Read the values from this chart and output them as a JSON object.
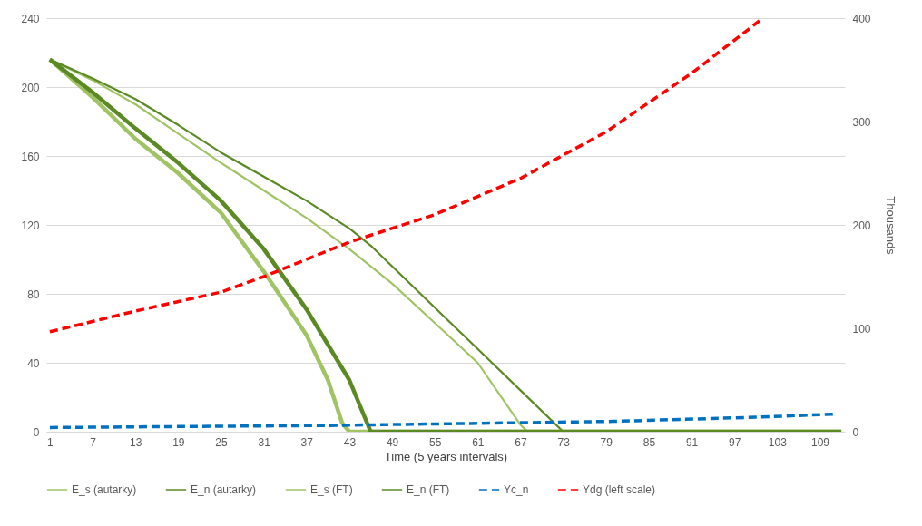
{
  "chart_data": {
    "type": "line",
    "xlabel": "Time (5 years intervals)",
    "y2label": "Thousands",
    "xlim": [
      0.5,
      112.5
    ],
    "xticks": [
      1,
      7,
      13,
      19,
      25,
      31,
      37,
      43,
      49,
      55,
      61,
      67,
      73,
      79,
      85,
      91,
      97,
      103,
      109
    ],
    "ylim": [
      0,
      240
    ],
    "yticks": [
      0,
      40,
      80,
      120,
      160,
      200,
      240
    ],
    "y2lim": [
      0,
      400
    ],
    "y2ticks": [
      0,
      100,
      200,
      300,
      400
    ],
    "grid": "y",
    "legend": "bottom",
    "marker": "none",
    "series": [
      {
        "name": "E_s (autarky)",
        "color": "#a0c464",
        "line_style": "solid",
        "x": [
          1,
          7,
          13,
          19,
          25,
          31,
          37,
          43,
          49,
          55,
          61,
          67,
          68,
          112
        ],
        "values": [
          216,
          204,
          190,
          173,
          156,
          140,
          124,
          106,
          86,
          63,
          40,
          4,
          0,
          0
        ]
      },
      {
        "name": "E_n (autarky)",
        "color": "#5b8a24",
        "line_style": "solid",
        "x": [
          1,
          7,
          13,
          19,
          25,
          31,
          37,
          43,
          46,
          55,
          61,
          67,
          73,
          112
        ],
        "values": [
          216,
          205,
          193,
          178,
          162,
          148,
          134,
          118,
          108,
          72,
          48,
          24,
          0,
          0
        ]
      },
      {
        "name": "E_s (FT)",
        "color": "#a0c464",
        "line_style": "solid",
        "type": "line",
        "x": [
          1,
          7,
          13,
          19,
          25,
          31,
          37,
          40,
          42,
          43,
          112
        ],
        "values": [
          216,
          194,
          170,
          150,
          127,
          93,
          56,
          30,
          5,
          0,
          0
        ]
      },
      {
        "name": "E_n (FT)",
        "color": "#5b8a24",
        "line_style": "solid",
        "x": [
          1,
          7,
          13,
          19,
          25,
          31,
          37,
          43,
          46,
          112
        ],
        "values": [
          216,
          197,
          176,
          156,
          134,
          106,
          71,
          30,
          0,
          0
        ]
      },
      {
        "name": "Yc_n",
        "color": "#0070c0",
        "line_style": "dashed",
        "axis": "y2",
        "x": [
          1,
          20,
          40,
          60,
          80,
          100,
          111
        ],
        "values": [
          4,
          5,
          6,
          8,
          10,
          14,
          17
        ]
      },
      {
        "name": "Ydg  (left scale)",
        "color": "#ff0000",
        "line_style": "dashed",
        "x": [
          1,
          13,
          25,
          31,
          43,
          55,
          67,
          79,
          91,
          101
        ],
        "values": [
          58,
          70,
          81,
          90,
          110,
          126,
          147,
          174,
          208,
          240
        ]
      }
    ]
  }
}
